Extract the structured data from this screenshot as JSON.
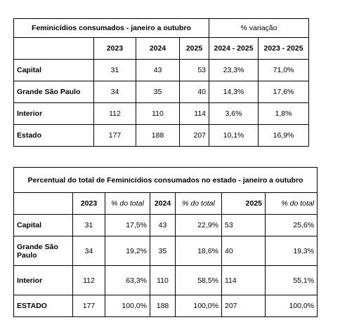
{
  "table1": {
    "title": "Feminicídios consumados - janeiro a outubro",
    "variation_title": "% variação",
    "columns": [
      "2023",
      "2024",
      "2025",
      "2024 - 2025",
      "2023 - 2025"
    ],
    "rows": [
      {
        "label": "Capital",
        "values": [
          "31",
          "43",
          "53",
          "23,3%",
          "71,0%"
        ]
      },
      {
        "label": "Grande São Paulo",
        "values": [
          "34",
          "35",
          "40",
          "14,3%",
          "17,6%"
        ]
      },
      {
        "label": "Interior",
        "values": [
          "112",
          "110",
          "114",
          "3,6%",
          "1,8%"
        ]
      },
      {
        "label": "Estado",
        "values": [
          "177",
          "188",
          "207",
          "10,1%",
          "16,9%"
        ]
      }
    ]
  },
  "table2": {
    "title": "Percentual do total de Feminicídios consumados no estado  - janeiro a outubro",
    "columns": [
      "2023",
      "% do total",
      "2024",
      "% do total",
      "2025",
      "% do total"
    ],
    "rows": [
      {
        "label": "Capital",
        "values": [
          "31",
          "17,5%",
          "43",
          "22,9%",
          "53",
          "25,6%"
        ]
      },
      {
        "label": "Grande São Paulo",
        "values": [
          "34",
          "19,2%",
          "35",
          "18,6%",
          "40",
          "19,3%"
        ]
      },
      {
        "label": "Interior",
        "values": [
          "112",
          "63,3%",
          "110",
          "58,5%",
          "114",
          "55,1%"
        ]
      },
      {
        "label": "ESTADO",
        "values": [
          "177",
          "100,0%",
          "188",
          "100,0%",
          "207",
          "100,0%"
        ]
      }
    ]
  }
}
